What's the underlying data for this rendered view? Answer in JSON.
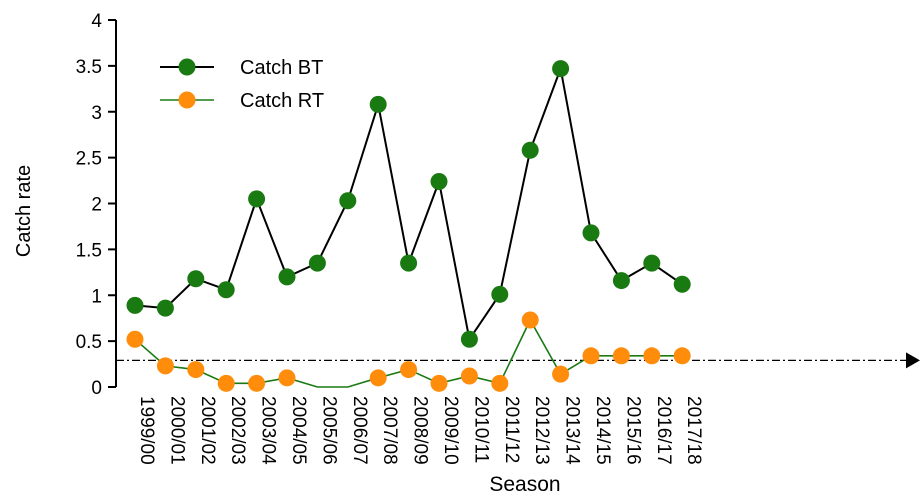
{
  "chart_data": {
    "type": "line",
    "title": "",
    "xlabel": "Season",
    "ylabel": "Catch rate",
    "ylim": [
      0,
      4
    ],
    "yticks": [
      "0",
      "0.5",
      "1",
      "1.5",
      "2",
      "2.5",
      "3",
      "3.5",
      "4"
    ],
    "categories": [
      "1999/00",
      "2000/01",
      "2001/02",
      "2002/03",
      "2003/04",
      "2004/05",
      "2005/06",
      "2006/07",
      "2007/08",
      "2008/09",
      "2009/10",
      "2010/11",
      "2011/12",
      "2012/13",
      "2013/14",
      "2014/15",
      "2015/16",
      "2016/17",
      "2017/18"
    ],
    "series": [
      {
        "name": "Catch BT",
        "line_color": "#000000",
        "marker_color": "#1a7a12",
        "values": [
          0.89,
          0.86,
          1.18,
          1.06,
          2.05,
          1.2,
          1.35,
          2.03,
          3.08,
          1.35,
          2.24,
          0.52,
          1.01,
          2.58,
          3.47,
          1.68,
          1.16,
          1.35,
          1.12
        ]
      },
      {
        "name": "Catch RT",
        "line_color": "#1a7a12",
        "marker_color": "#ff8c0a",
        "values": [
          0.52,
          0.23,
          0.19,
          0.04,
          0.04,
          0.1,
          null,
          null,
          0.1,
          0.19,
          0.04,
          0.12,
          0.04,
          0.73,
          0.14,
          0.34,
          0.34,
          0.34,
          0.34
        ]
      }
    ],
    "reference_line": {
      "y": 0.29,
      "style": "dash-dot",
      "arrow": "right"
    },
    "grid": false,
    "legend": "top-left"
  }
}
